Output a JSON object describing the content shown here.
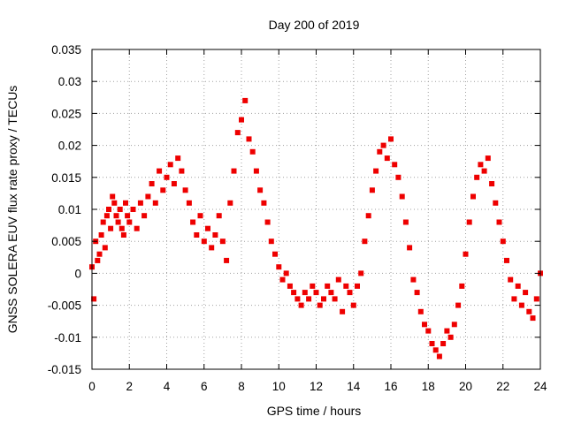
{
  "chart_data": {
    "type": "scatter",
    "title": "Day 200 of 2019",
    "xlabel": "GPS time / hours",
    "ylabel": "GNSS SOLERA EUV flux rate proxy / TECUs",
    "xlim": [
      0,
      24
    ],
    "ylim": [
      -0.015,
      0.035
    ],
    "xticks": [
      "0",
      "2",
      "4",
      "6",
      "8",
      "10",
      "12",
      "14",
      "16",
      "18",
      "20",
      "22",
      "24"
    ],
    "yticks": [
      "-0.015",
      "-0.01",
      "-0.005",
      "0",
      "0.005",
      "0.01",
      "0.015",
      "0.02",
      "0.025",
      "0.03",
      "0.035"
    ],
    "grid": true,
    "marker": "square",
    "color": "#ee0000",
    "series": [
      {
        "x": [
          0.0,
          0.1,
          0.2,
          0.3,
          0.4,
          0.5,
          0.6,
          0.7,
          0.8,
          0.9,
          1.0,
          1.1,
          1.2,
          1.3,
          1.4,
          1.5,
          1.6,
          1.7,
          1.8,
          1.9,
          2.0,
          2.2,
          2.4,
          2.6,
          2.8,
          3.0,
          3.2,
          3.4,
          3.6,
          3.8,
          4.0,
          4.2,
          4.4,
          4.6,
          4.8,
          5.0,
          5.2,
          5.4,
          5.6,
          5.8,
          6.0,
          6.2,
          6.4,
          6.6,
          6.8,
          7.0,
          7.2,
          7.4,
          7.6,
          7.8,
          8.0,
          8.2,
          8.4,
          8.6,
          8.8,
          9.0,
          9.2,
          9.4,
          9.6,
          9.8,
          10.0,
          10.2,
          10.4,
          10.6,
          10.8,
          11.0,
          11.2,
          11.4,
          11.6,
          11.8,
          12.0,
          12.2,
          12.4,
          12.6,
          12.8,
          13.0,
          13.2,
          13.4,
          13.6,
          13.8,
          14.0,
          14.2,
          14.4,
          14.6,
          14.8,
          15.0,
          15.2,
          15.4,
          15.6,
          15.8,
          16.0,
          16.2,
          16.4,
          16.6,
          16.8,
          17.0,
          17.2,
          17.4,
          17.6,
          17.8,
          18.0,
          18.2,
          18.4,
          18.6,
          18.8,
          19.0,
          19.2,
          19.4,
          19.6,
          19.8,
          20.0,
          20.2,
          20.4,
          20.6,
          20.8,
          21.0,
          21.2,
          21.4,
          21.6,
          21.8,
          22.0,
          22.2,
          22.4,
          22.6,
          22.8,
          23.0,
          23.2,
          23.4,
          23.6,
          23.8,
          24.0
        ],
        "y": [
          0.001,
          -0.004,
          0.005,
          0.002,
          0.003,
          0.006,
          0.008,
          0.004,
          0.009,
          0.01,
          0.007,
          0.012,
          0.011,
          0.009,
          0.008,
          0.01,
          0.007,
          0.006,
          0.011,
          0.009,
          0.008,
          0.01,
          0.007,
          0.011,
          0.009,
          0.012,
          0.014,
          0.011,
          0.016,
          0.013,
          0.015,
          0.017,
          0.014,
          0.018,
          0.016,
          0.013,
          0.011,
          0.008,
          0.006,
          0.009,
          0.005,
          0.007,
          0.004,
          0.006,
          0.009,
          0.005,
          0.002,
          0.011,
          0.016,
          0.022,
          0.024,
          0.027,
          0.021,
          0.019,
          0.016,
          0.013,
          0.011,
          0.008,
          0.005,
          0.003,
          0.001,
          -0.001,
          0.0,
          -0.002,
          -0.003,
          -0.004,
          -0.005,
          -0.003,
          -0.004,
          -0.002,
          -0.003,
          -0.005,
          -0.004,
          -0.002,
          -0.003,
          -0.004,
          -0.001,
          -0.006,
          -0.002,
          -0.003,
          -0.005,
          -0.002,
          0.0,
          0.005,
          0.009,
          0.013,
          0.016,
          0.019,
          0.02,
          0.018,
          0.021,
          0.017,
          0.015,
          0.012,
          0.008,
          0.004,
          -0.001,
          -0.003,
          -0.006,
          -0.008,
          -0.009,
          -0.011,
          -0.012,
          -0.013,
          -0.011,
          -0.009,
          -0.01,
          -0.008,
          -0.005,
          -0.002,
          0.003,
          0.008,
          0.012,
          0.015,
          0.017,
          0.016,
          0.018,
          0.014,
          0.011,
          0.008,
          0.005,
          0.002,
          -0.001,
          -0.004,
          -0.002,
          -0.005,
          -0.003,
          -0.006,
          -0.007,
          -0.004,
          0.0
        ]
      }
    ]
  }
}
